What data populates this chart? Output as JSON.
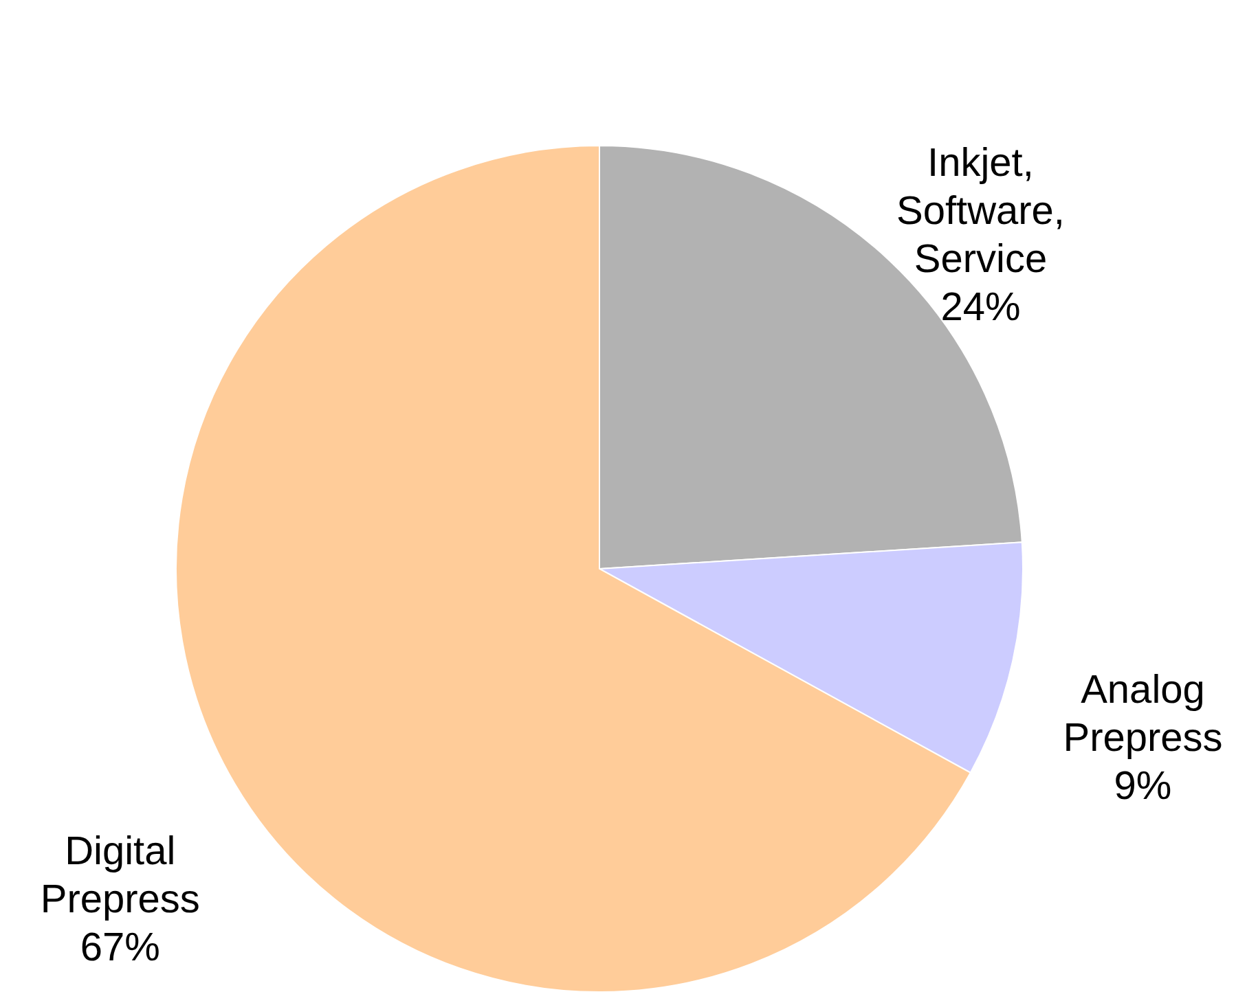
{
  "chart_data": {
    "type": "pie",
    "categories": [
      "Inkjet, Software, Service",
      "Analog Prepress",
      "Digital Prepress"
    ],
    "values": [
      24,
      9,
      67
    ],
    "value_labels": [
      "24%",
      "9%",
      "67%"
    ],
    "colors": [
      "#b2b2b2",
      "#ccccff",
      "#ffcc99"
    ]
  }
}
